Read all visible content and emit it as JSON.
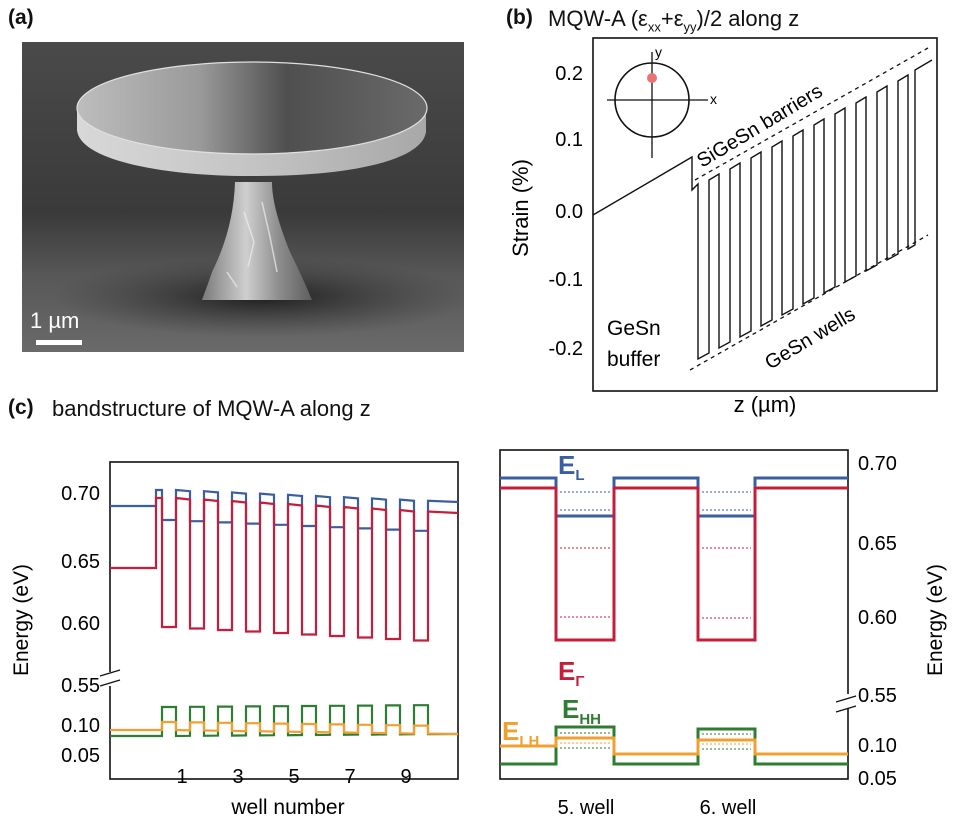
{
  "panel_a": {
    "label": "(a)",
    "scalebar": "1 µm"
  },
  "panel_b": {
    "label": "(b)",
    "title_main": "MQW-A (ε",
    "title_sub1": "xx",
    "title_plus": "+ε",
    "title_sub2": "yy",
    "title_end": ")/2 along z",
    "ylabel": "Strain (%)",
    "xlabel": "z (µm)",
    "yticks": [
      "0.2",
      "0.1",
      "0.0",
      "-0.1",
      "-0.2"
    ],
    "annotation_barriers": "SiGeSn barriers",
    "annotation_wells": "GeSn wells",
    "annotation_buffer_1": "GeSn",
    "annotation_buffer_2": "buffer",
    "inset_x": "x",
    "inset_y": "y",
    "colors": {
      "inset_dot": "#e87474"
    }
  },
  "panel_c": {
    "label": "(c)",
    "title": "bandstructure of MQW-A along z",
    "ylabel_left": "Energy (eV)",
    "ylabel_right": "Energy (eV)",
    "xlabel_left": "well number",
    "left_yticks_top": [
      "0.70",
      "0.65",
      "0.60",
      "0.55"
    ],
    "left_yticks_bottom": [
      "0.10",
      "0.05"
    ],
    "left_xticks": [
      "1",
      "3",
      "5",
      "7",
      "9"
    ],
    "right_yticks_top": [
      "0.70",
      "0.65",
      "0.60",
      "0.55"
    ],
    "right_yticks_bottom": [
      "0.10",
      "0.05"
    ],
    "right_xticks": [
      "5. well",
      "6. well"
    ],
    "legend": {
      "EL": "E",
      "EL_sub": "L",
      "EG": "E",
      "EG_sub": "Γ",
      "EHH": "E",
      "EHH_sub": "HH",
      "ELH": "E",
      "ELH_sub": "LH"
    },
    "colors": {
      "EL": "#3a5fa0",
      "EG": "#c41e3a",
      "EHH": "#2e7d32",
      "ELH": "#f0a030"
    }
  }
}
